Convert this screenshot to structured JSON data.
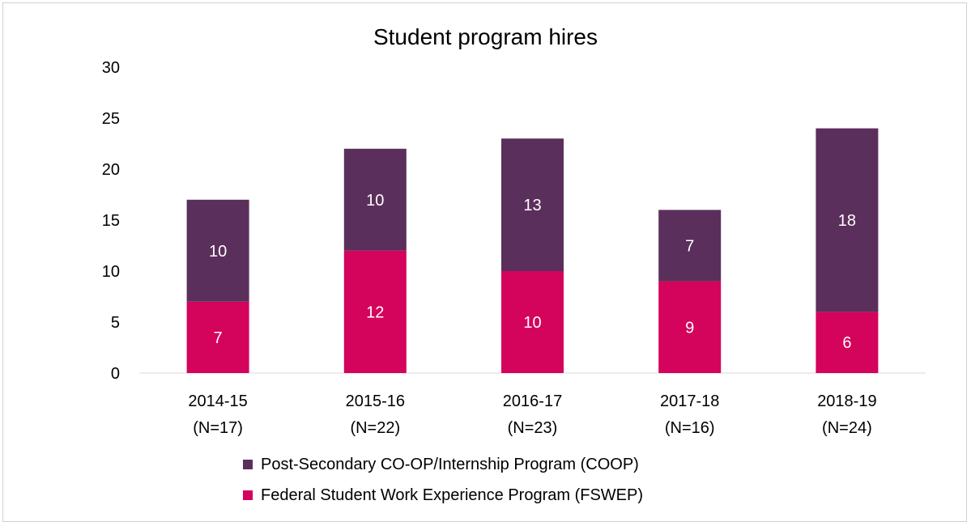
{
  "chart_data": {
    "type": "bar",
    "stacked": true,
    "title": "Student program hires",
    "categories": [
      "2014-15",
      "2015-16",
      "2016-17",
      "2017-18",
      "2018-19"
    ],
    "category_sublabels": [
      "(N=17)",
      "(N=22)",
      "(N=23)",
      "(N=16)",
      "(N=24)"
    ],
    "series": [
      {
        "name": "Federal Student Work Experience Program (FSWEP)",
        "values": [
          7,
          12,
          10,
          9,
          6
        ],
        "color": "#d4035b"
      },
      {
        "name": "Post-Secondary CO-OP/Internship Program (COOP)",
        "values": [
          10,
          10,
          13,
          7,
          18
        ],
        "color": "#5b2f5b"
      }
    ],
    "ylim": [
      0,
      30
    ],
    "yticks": [
      0,
      5,
      10,
      15,
      20,
      25,
      30
    ],
    "grid": false,
    "legend_position": "bottom",
    "data_labels": true
  }
}
